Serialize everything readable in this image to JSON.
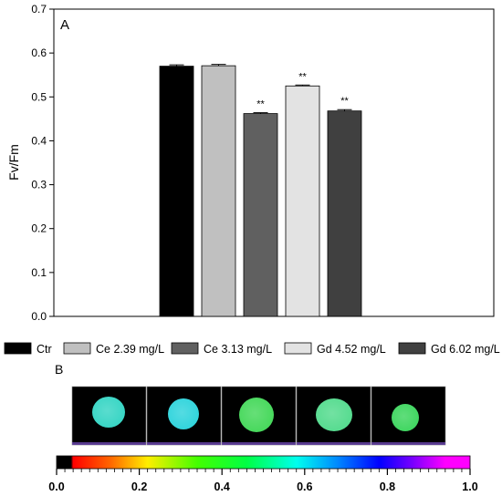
{
  "chart_data": {
    "type": "bar",
    "panel_label": "A",
    "ylabel": "Fv/Fm",
    "ylim": [
      0,
      0.7
    ],
    "yticks": [
      "0.0",
      "0.1",
      "0.2",
      "0.3",
      "0.4",
      "0.5",
      "0.6",
      "0.7"
    ],
    "categories": [
      "Ctr",
      "Ce 2.39 mg/L",
      "Ce 3.13 mg/L",
      "Gd 4.52 mg/L",
      "Gd 6.02 mg/L"
    ],
    "values": [
      0.57,
      0.571,
      0.462,
      0.525,
      0.468
    ],
    "errors": [
      0.003,
      0.003,
      0.002,
      0.002,
      0.003
    ],
    "significance": [
      "",
      "",
      "**",
      "**",
      "**"
    ],
    "colors": [
      "#000000",
      "#c0c0c0",
      "#606060",
      "#e3e3e3",
      "#404040"
    ],
    "legend": [
      "Ctr",
      "Ce 2.39 mg/L",
      "Ce 3.13 mg/L",
      "Gd 4.52 mg/L",
      "Gd 6.02 mg/L"
    ],
    "legend_position": "bottom"
  },
  "image_panel": {
    "label": "B",
    "spot_colors": [
      "#36d5c4",
      "#2fd4dc",
      "#45d85a",
      "#54db8e",
      "#3ed65f"
    ]
  },
  "colorbar": {
    "tick_labels": [
      "0.0",
      "0.2",
      "0.4",
      "0.6",
      "0.8",
      "1.0"
    ],
    "tick_values": [
      0,
      0.2,
      0.4,
      0.6,
      0.8,
      1.0
    ]
  }
}
